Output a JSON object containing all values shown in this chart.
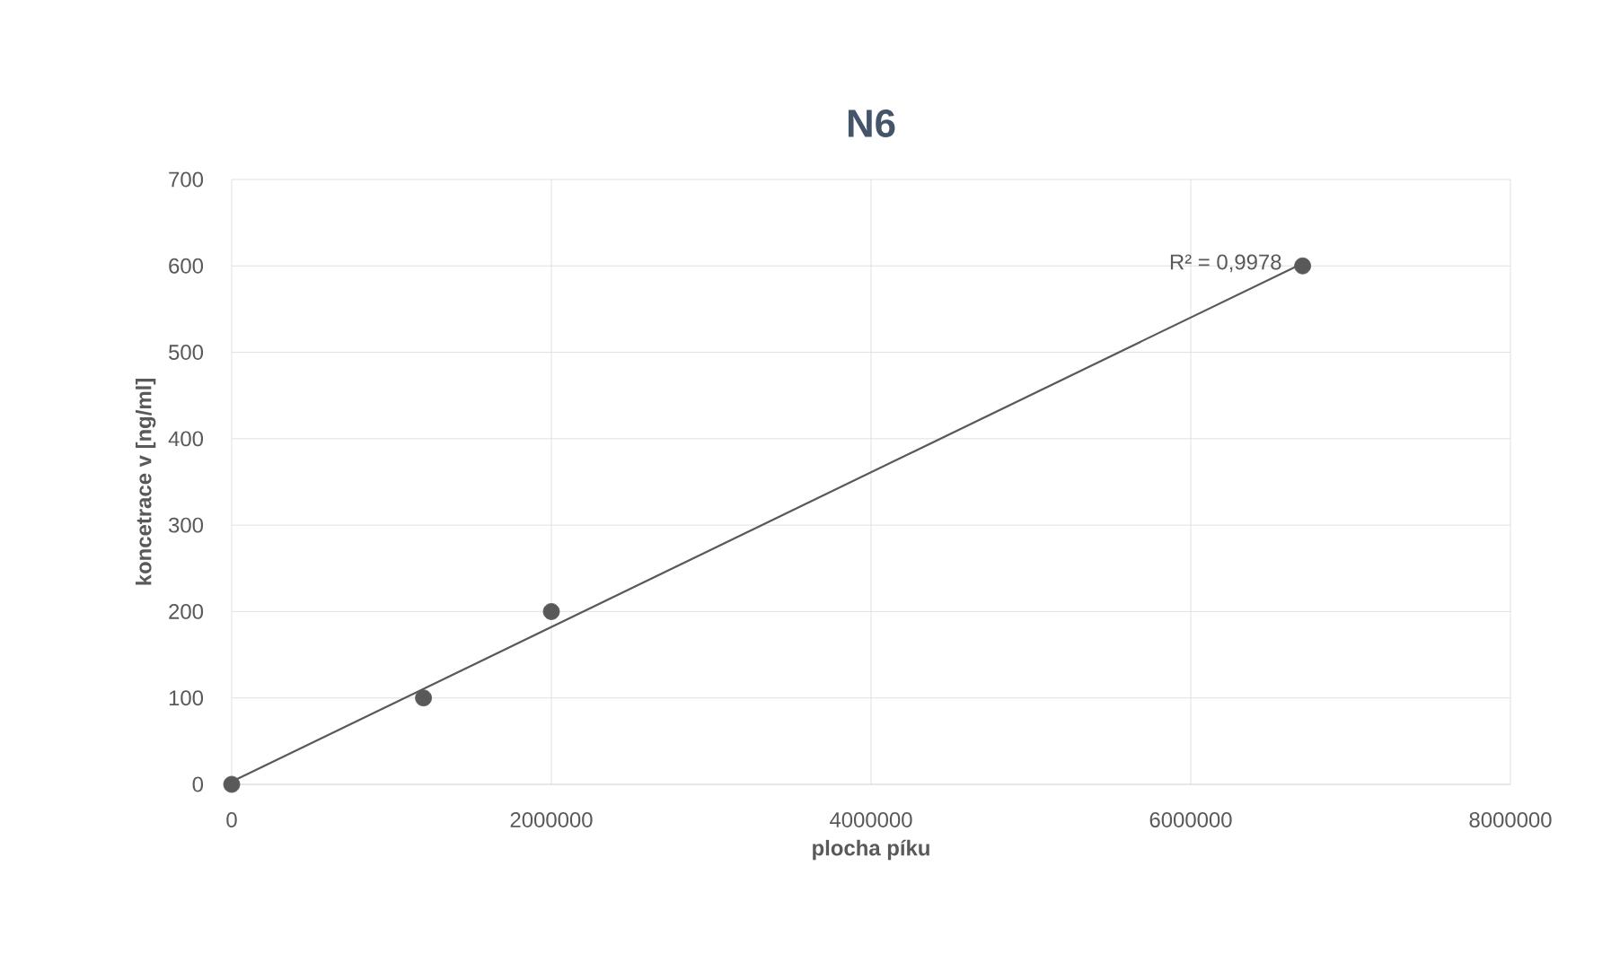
{
  "chart_data": {
    "type": "scatter",
    "title": "N6",
    "xlabel": "plocha píku",
    "ylabel": "koncetrace v [ng/ml]",
    "series": [
      {
        "color": "#595959",
        "marker": "circle",
        "x": [
          0,
          1200000,
          2000000,
          6700000
        ],
        "values": [
          0,
          100,
          200,
          600
        ]
      },
      {
        "type": "line",
        "color": "#595959",
        "marker": "none",
        "x": [
          0,
          6700000
        ],
        "values": [
          3,
          603
        ]
      }
    ],
    "annotations": [
      {
        "text": "R² = 0,9978",
        "x": 6700000,
        "y": 603
      }
    ],
    "xlim": [
      0,
      8000000
    ],
    "xticks": [
      0,
      2000000,
      4000000,
      6000000,
      8000000
    ],
    "ylim": [
      0,
      700
    ],
    "yticks": [
      0,
      100,
      200,
      300,
      400,
      500,
      600,
      700
    ],
    "grid": true
  }
}
